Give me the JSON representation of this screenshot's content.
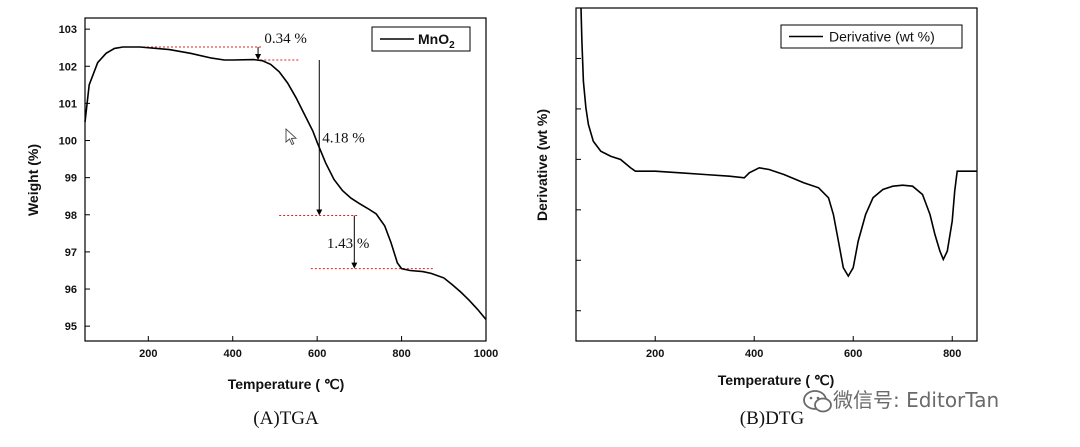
{
  "chart_data": [
    {
      "type": "line",
      "caption": "(A)TGA",
      "xlabel": "Temperature ( ℃)",
      "ylabel": "Weight (%)",
      "xlim": [
        50,
        1000
      ],
      "ylim": [
        94.6,
        103.3
      ],
      "xticks": [
        200,
        400,
        600,
        800,
        1000
      ],
      "yticks": [
        95,
        96,
        97,
        98,
        99,
        100,
        101,
        102,
        103
      ],
      "grid": false,
      "legend": "top-right",
      "series": [
        {
          "name": "MnO2",
          "color": "#000000",
          "x": [
            50,
            60,
            80,
            100,
            120,
            140,
            180,
            250,
            300,
            350,
            380,
            400,
            450,
            470,
            490,
            510,
            530,
            550,
            570,
            590,
            600,
            620,
            640,
            660,
            680,
            700,
            720,
            740,
            760,
            775,
            790,
            800,
            820,
            850,
            870,
            900,
            920,
            940,
            960,
            980,
            1000
          ],
          "y": [
            100.5,
            101.5,
            102.1,
            102.35,
            102.48,
            102.52,
            102.52,
            102.45,
            102.35,
            102.22,
            102.17,
            102.17,
            102.18,
            102.15,
            102.05,
            101.85,
            101.55,
            101.15,
            100.7,
            100.25,
            99.95,
            99.4,
            98.95,
            98.65,
            98.45,
            98.3,
            98.17,
            98.02,
            97.7,
            97.25,
            96.7,
            96.55,
            96.5,
            96.47,
            96.42,
            96.3,
            96.12,
            95.92,
            95.7,
            95.45,
            95.18
          ]
        }
      ],
      "legend_label": "MnO",
      "legend_sub": "2",
      "annotations": [
        {
          "text": "0.34 %",
          "x": 475,
          "y": 102.62
        },
        {
          "text": "4.18 %",
          "x": 612,
          "y": 99.95
        },
        {
          "text": "1.43 %",
          "x": 623,
          "y": 97.1
        }
      ]
    },
    {
      "type": "line",
      "caption": "(B)DTG",
      "xlabel": "Temperature ( ℃)",
      "ylabel": "Derivative (wt %)",
      "xlim": [
        40,
        850
      ],
      "xticks": [
        200,
        400,
        600,
        800
      ],
      "ylim": [
        0,
        1
      ],
      "grid": false,
      "legend": "top-right",
      "series": [
        {
          "name": "Derivative (wt %)",
          "color": "#000000",
          "x": [
            50,
            52,
            55,
            60,
            65,
            75,
            90,
            110,
            130,
            150,
            160,
            200,
            250,
            300,
            350,
            380,
            390,
            410,
            430,
            460,
            500,
            530,
            550,
            560,
            570,
            580,
            590,
            600,
            610,
            625,
            640,
            660,
            680,
            700,
            720,
            740,
            755,
            765,
            775,
            782,
            790,
            800,
            805,
            810,
            830,
            850
          ],
          "y": [
            1.0,
            0.9,
            0.78,
            0.7,
            0.65,
            0.6,
            0.57,
            0.555,
            0.545,
            0.52,
            0.51,
            0.51,
            0.505,
            0.5,
            0.495,
            0.49,
            0.505,
            0.52,
            0.515,
            0.5,
            0.475,
            0.46,
            0.43,
            0.38,
            0.3,
            0.22,
            0.195,
            0.22,
            0.3,
            0.38,
            0.43,
            0.455,
            0.465,
            0.468,
            0.465,
            0.44,
            0.38,
            0.32,
            0.27,
            0.245,
            0.27,
            0.36,
            0.45,
            0.51,
            0.51,
            0.51
          ]
        }
      ]
    }
  ],
  "watermark": "微信号: EditorTan"
}
